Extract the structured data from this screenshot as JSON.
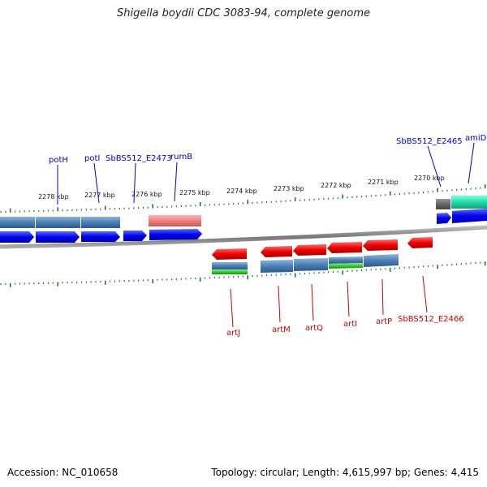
{
  "title": "Shigella boydii CDC 3083-94, complete genome",
  "accession": "Accession: NC_010658",
  "summary": "Topology: circular; Length: 4,615,997 bp; Genes: 4,415",
  "ticks": [
    "2278 kbp",
    "2277 kbp",
    "2276 kbp",
    "2275 kbp",
    "2274 kbp",
    "2273 kbp",
    "2272 kbp",
    "2271 kbp",
    "2270 kbp"
  ],
  "top_genes": [
    "potH",
    "potI",
    "SbBS512_E2473",
    "rumB",
    "SbBS512_E2465",
    "amiD"
  ],
  "bottom_genes": [
    "artJ",
    "artM",
    "artQ",
    "artI",
    "artP",
    "SbBS512_E2466"
  ],
  "colors": {
    "forward_cds": "#0000ee",
    "reverse_cds": "#ee0000",
    "steelblue_feature": "#4a7fb5",
    "salmon_feature": "#f08080",
    "green_feature": "#33cc33",
    "teal_feature": "#22ddaa",
    "tick": "#227722",
    "backbone": "#888888"
  }
}
